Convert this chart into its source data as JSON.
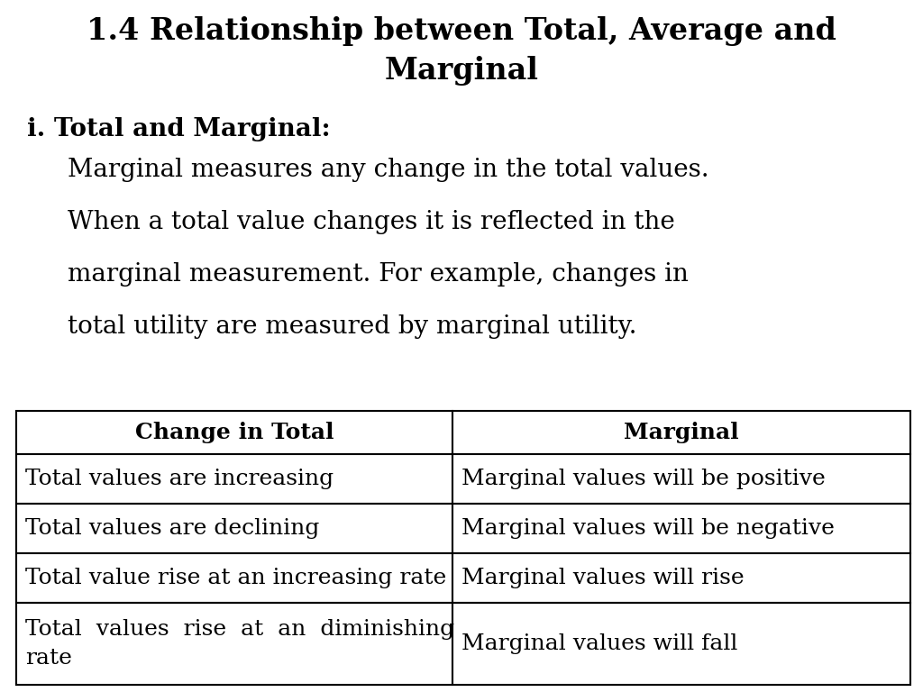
{
  "title_line1": "1.4 Relationship between Total, Average and",
  "title_line2": "Marginal",
  "subtitle_i": "i.",
  "subtitle_bold": "Total and Marginal:",
  "body_lines": [
    "Marginal measures any change in the total values.",
    "When a total value changes it is reflected in the",
    "marginal measurement. For example, changes in",
    "total utility are measured by marginal utility."
  ],
  "table_headers": [
    "Change in Total",
    "Marginal"
  ],
  "table_rows": [
    [
      "Total values are increasing",
      "Marginal values will be positive"
    ],
    [
      "Total values are declining",
      "Marginal values will be negative"
    ],
    [
      "Total value rise at an increasing rate",
      "Marginal values will rise"
    ],
    [
      "Total  values  rise  at  an  diminishing\nrate",
      "Marginal values will fall"
    ]
  ],
  "background_color": "#ffffff",
  "text_color": "#000000",
  "title_fontsize": 24,
  "subtitle_fontsize": 20,
  "body_fontsize": 20,
  "table_header_fontsize": 18,
  "table_body_fontsize": 18,
  "col_split": 0.488,
  "font_family": "DejaVu Serif"
}
